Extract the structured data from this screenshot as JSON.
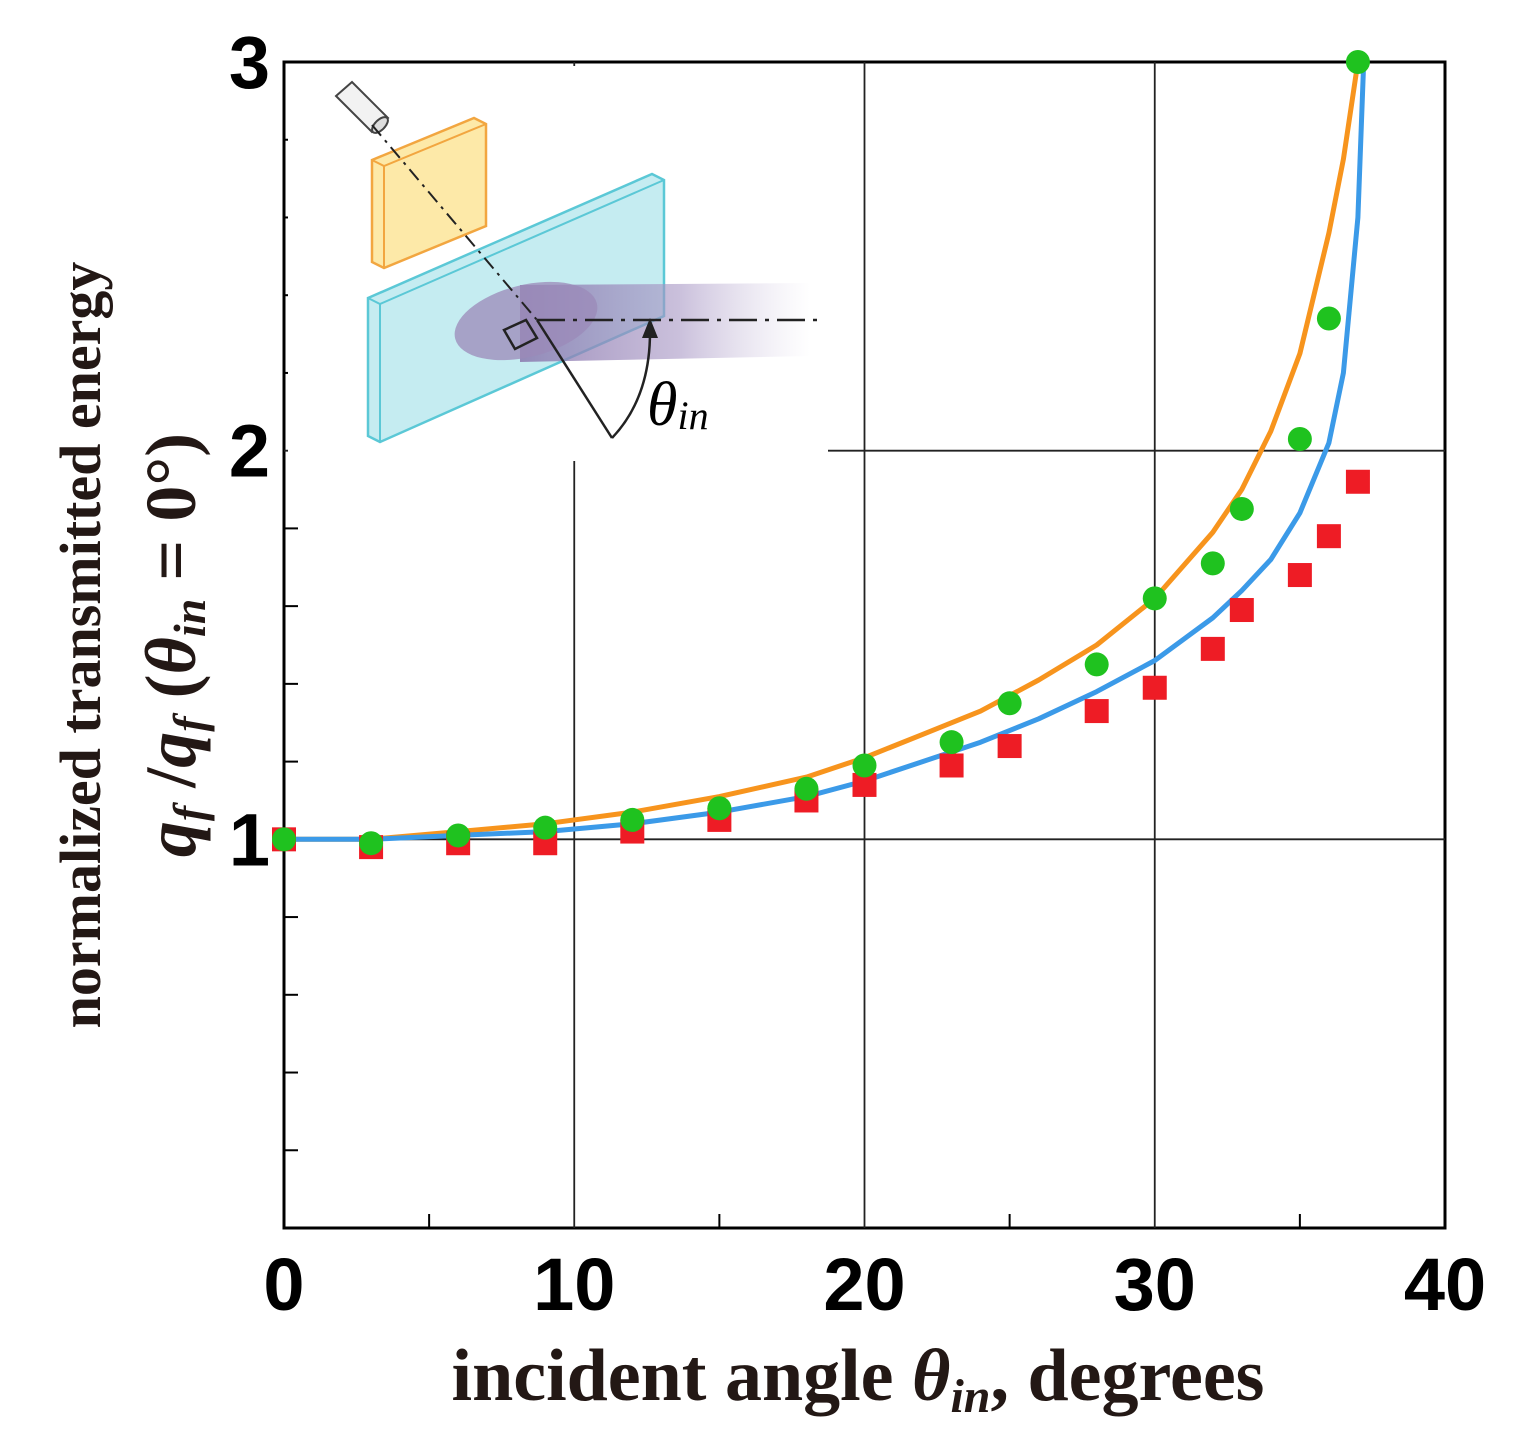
{
  "chart_data": {
    "type": "scatter",
    "title": "",
    "xlabel": "incident angle θin, degrees",
    "ylabel": "normalized transmitted energy qf /qf (θin = 0°)",
    "xlim": [
      0,
      40
    ],
    "ylim": [
      0,
      3
    ],
    "x_ticks": [
      0,
      10,
      20,
      30,
      40
    ],
    "y_ticks": [
      1,
      2,
      3
    ],
    "grid": true,
    "xlabel_parts": {
      "main": "incident angle ",
      "sym": "θ",
      "sub": "in",
      "tail": ", degrees"
    },
    "ylabel_line1": "normalized transmitted energy",
    "ylabel_line2": {
      "q1": "q",
      "s1": "f",
      "slash": " /",
      "q2": "q",
      "s2": "f",
      "open": " (",
      "th": "θ",
      "sub": "in",
      "rest": " = 0°)"
    },
    "inset": {
      "theta": "θ",
      "sub": "in"
    },
    "series": [
      {
        "name": "green circles",
        "kind": "points",
        "marker": "circle",
        "color": "#1fc21f",
        "x": [
          0,
          3,
          6,
          9,
          12,
          15,
          18,
          20,
          23,
          25,
          28,
          30,
          32,
          33,
          35,
          36,
          37
        ],
        "y": [
          1.0,
          0.99,
          1.01,
          1.03,
          1.05,
          1.08,
          1.13,
          1.19,
          1.25,
          1.35,
          1.45,
          1.62,
          1.71,
          1.85,
          2.03,
          2.34,
          3.0
        ]
      },
      {
        "name": "red squares",
        "kind": "points",
        "marker": "square",
        "color": "#ee1c25",
        "x": [
          0,
          3,
          6,
          9,
          12,
          15,
          18,
          20,
          23,
          25,
          28,
          30,
          32,
          33,
          35,
          36,
          37
        ],
        "y": [
          1.0,
          0.98,
          0.99,
          0.99,
          1.02,
          1.05,
          1.1,
          1.14,
          1.19,
          1.24,
          1.33,
          1.39,
          1.49,
          1.59,
          1.68,
          1.78,
          1.92
        ]
      },
      {
        "name": "orange curve",
        "kind": "line",
        "color": "#f7941d",
        "x": [
          0,
          3,
          6,
          9,
          12,
          15,
          18,
          20,
          22,
          24,
          26,
          28,
          30,
          32,
          33,
          34,
          35,
          36,
          36.5,
          37
        ],
        "y": [
          1.0,
          1.0,
          1.02,
          1.04,
          1.07,
          1.11,
          1.16,
          1.21,
          1.27,
          1.33,
          1.41,
          1.5,
          1.62,
          1.79,
          1.9,
          2.05,
          2.25,
          2.56,
          2.75,
          3.0
        ]
      },
      {
        "name": "blue curve",
        "kind": "line",
        "color": "#3b9ae8",
        "x": [
          0,
          3,
          6,
          9,
          12,
          15,
          18,
          20,
          22,
          24,
          26,
          28,
          30,
          32,
          33,
          34,
          35,
          36,
          36.5,
          37,
          37.2
        ],
        "y": [
          1.0,
          1.0,
          1.01,
          1.02,
          1.04,
          1.07,
          1.11,
          1.15,
          1.2,
          1.25,
          1.31,
          1.38,
          1.46,
          1.57,
          1.64,
          1.72,
          1.84,
          2.02,
          2.2,
          2.6,
          3.0
        ]
      }
    ],
    "colors": {
      "orange_plate": "#fde9a8",
      "orange_edge": "#f2a640",
      "cyan_plate": "#c5ecf1",
      "cyan_edge": "#5bc8d6",
      "beam": "#9b8ab8"
    }
  }
}
